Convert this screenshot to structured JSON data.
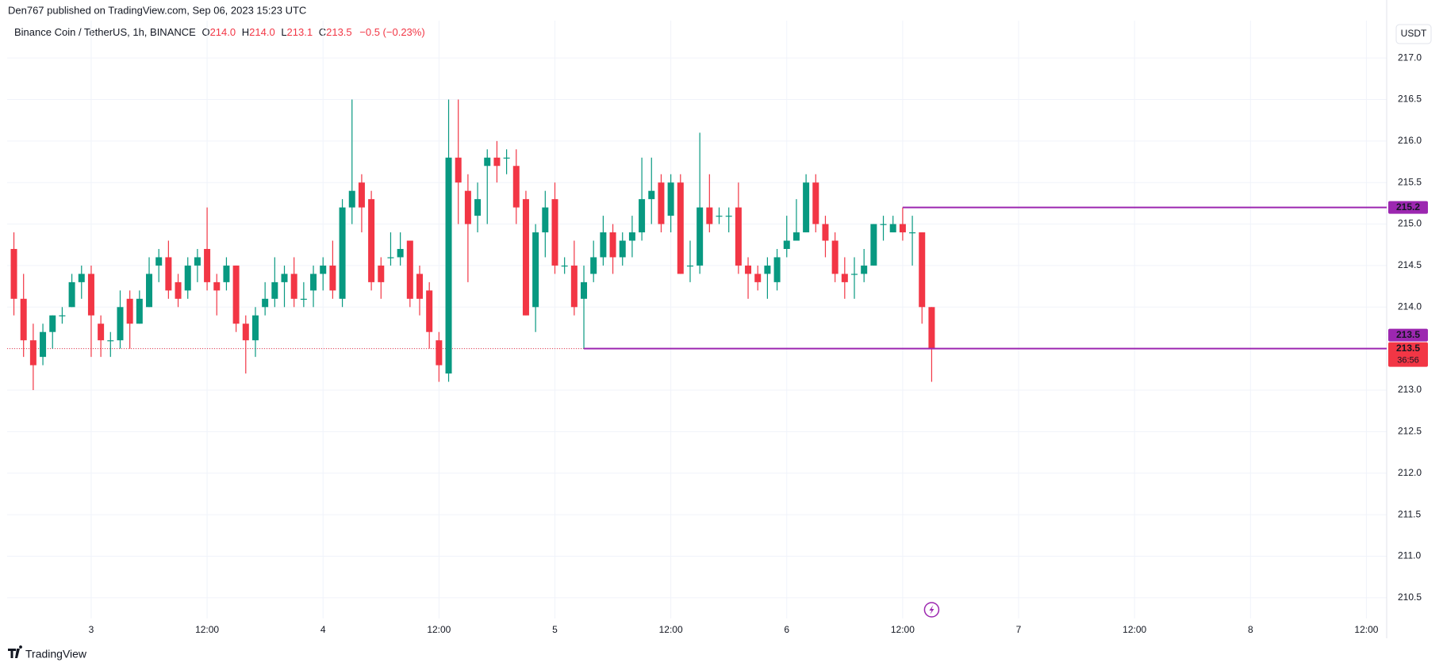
{
  "chart_data": {
    "type": "candlestick",
    "header": "Den767 published on TradingView.com, Sep 06, 2023 15:23 UTC",
    "legend": {
      "symbol": "Binance Coin / TetherUS, 1h, BINANCE",
      "o_label": "O",
      "o": "214.0",
      "h_label": "H",
      "h": "214.0",
      "l_label": "L",
      "l": "213.1",
      "c_label": "C",
      "c": "213.5",
      "change": "−0.5 (−0.23%)"
    },
    "currency": "USDT",
    "footer": "TradingView",
    "up_color": "#089981",
    "down_color": "#f23645",
    "line_color": "#9c27b0",
    "open": [
      214.7,
      214.1,
      213.6,
      213.4,
      213.7,
      213.9,
      214.0,
      214.3,
      214.4,
      213.8,
      213.6,
      213.6,
      214.1,
      213.8,
      214.0,
      214.5,
      214.6,
      214.3,
      214.2,
      214.5,
      214.7,
      214.3,
      214.3,
      214.5,
      213.8,
      213.6,
      214.0,
      214.1,
      214.3,
      214.4,
      214.1,
      214.2,
      214.4,
      214.5,
      214.1,
      215.2,
      215.5,
      215.3,
      214.5,
      214.6,
      214.6,
      214.8,
      214.4,
      214.2,
      213.6,
      213.2,
      215.8,
      215.4,
      215.1,
      215.7,
      215.8,
      215.8,
      215.7,
      215.3,
      214.0,
      214.9,
      215.3,
      214.5,
      214.5,
      214.1,
      214.4,
      214.6,
      214.9,
      214.6,
      214.8,
      214.9,
      215.3,
      215.5,
      215.1,
      215.5,
      214.5,
      214.5,
      215.2,
      215.1,
      215.1,
      215.2,
      214.5,
      214.4,
      214.4,
      214.3,
      214.7,
      214.8,
      214.9,
      215.5,
      215.0,
      214.8,
      214.4,
      214.4,
      214.4,
      214.5,
      215.0,
      214.9,
      215.0,
      214.9,
      214.9,
      214.0
    ],
    "high": [
      214.9,
      214.4,
      213.8,
      213.8,
      213.9,
      214.0,
      214.4,
      214.5,
      214.5,
      213.9,
      213.7,
      214.2,
      214.2,
      214.2,
      214.6,
      214.7,
      214.8,
      214.4,
      214.6,
      214.7,
      215.2,
      214.4,
      214.6,
      214.5,
      213.9,
      214.0,
      214.3,
      214.6,
      214.5,
      214.6,
      214.3,
      214.5,
      214.6,
      214.8,
      215.3,
      216.5,
      215.6,
      215.4,
      214.6,
      214.9,
      214.9,
      214.8,
      214.5,
      214.3,
      213.7,
      216.5,
      216.5,
      215.6,
      215.5,
      215.9,
      216.0,
      215.9,
      215.9,
      215.4,
      215.0,
      215.4,
      215.5,
      214.6,
      214.8,
      214.5,
      214.8,
      215.1,
      215.0,
      214.9,
      215.1,
      215.8,
      215.8,
      215.6,
      215.6,
      215.6,
      214.8,
      216.1,
      215.6,
      215.2,
      215.2,
      215.5,
      214.6,
      214.5,
      214.6,
      214.7,
      215.1,
      215.3,
      215.6,
      215.6,
      215.1,
      214.9,
      214.6,
      214.6,
      214.7,
      215.0,
      215.1,
      215.1,
      215.2,
      215.1,
      214.9,
      214.0
    ],
    "low": [
      213.9,
      213.4,
      213.0,
      213.3,
      213.5,
      213.8,
      214.0,
      214.1,
      213.4,
      213.4,
      213.4,
      213.5,
      213.5,
      213.8,
      214.0,
      214.3,
      214.1,
      214.0,
      214.1,
      214.3,
      214.2,
      213.9,
      214.2,
      213.7,
      213.2,
      213.4,
      213.9,
      214.0,
      214.0,
      214.0,
      214.0,
      214.0,
      214.2,
      214.1,
      214.0,
      215.0,
      214.9,
      214.2,
      214.1,
      214.5,
      214.5,
      214.0,
      213.9,
      213.5,
      213.1,
      213.1,
      215.0,
      214.3,
      214.9,
      215.0,
      215.5,
      215.6,
      215.0,
      213.9,
      213.7,
      214.6,
      214.4,
      214.4,
      213.9,
      213.5,
      214.3,
      214.5,
      214.4,
      214.5,
      214.6,
      214.8,
      215.0,
      214.9,
      214.9,
      214.4,
      214.3,
      214.4,
      214.9,
      215.0,
      214.9,
      214.4,
      214.1,
      214.2,
      214.1,
      214.2,
      214.6,
      214.8,
      214.9,
      214.9,
      214.6,
      214.3,
      214.1,
      214.1,
      214.3,
      214.5,
      214.8,
      214.9,
      214.8,
      214.5,
      213.8,
      213.1
    ],
    "close": [
      214.1,
      213.6,
      213.3,
      213.7,
      213.9,
      213.9,
      214.3,
      214.4,
      213.9,
      213.6,
      213.6,
      214.0,
      213.8,
      214.1,
      214.4,
      214.6,
      214.2,
      214.1,
      214.5,
      214.6,
      214.3,
      214.2,
      214.5,
      213.8,
      213.6,
      213.9,
      214.1,
      214.3,
      214.4,
      214.1,
      214.1,
      214.4,
      214.5,
      214.2,
      215.2,
      215.4,
      215.2,
      214.3,
      214.3,
      214.6,
      214.7,
      214.1,
      214.1,
      213.7,
      213.3,
      215.8,
      215.5,
      215.0,
      215.3,
      215.8,
      215.7,
      215.8,
      215.2,
      213.9,
      214.9,
      215.2,
      214.5,
      214.5,
      214.0,
      214.3,
      214.6,
      214.9,
      214.6,
      214.8,
      214.9,
      215.3,
      215.4,
      215.0,
      215.5,
      214.4,
      214.5,
      215.2,
      215.0,
      215.1,
      215.1,
      214.5,
      214.4,
      214.3,
      214.5,
      214.6,
      214.8,
      214.9,
      215.5,
      215.0,
      214.8,
      214.4,
      214.3,
      214.4,
      214.5,
      215.0,
      215.0,
      215.0,
      214.9,
      214.9,
      214.0,
      213.5
    ],
    "lines": [
      {
        "value": 215.2,
        "start": 92
      },
      {
        "value": 213.5,
        "start": 59
      }
    ],
    "last_price": 213.5,
    "countdown": "36:56",
    "xlim": [
      -0.7,
      142.1
    ],
    "xticks": [
      {
        "value": 8,
        "label": "3"
      },
      {
        "value": 20,
        "label": "12:00"
      },
      {
        "value": 32,
        "label": "4"
      },
      {
        "value": 44,
        "label": "12:00"
      },
      {
        "value": 56,
        "label": "5"
      },
      {
        "value": 68,
        "label": "12:00"
      },
      {
        "value": 80,
        "label": "6"
      },
      {
        "value": 92,
        "label": "12:00"
      },
      {
        "value": 104,
        "label": "7"
      },
      {
        "value": 116,
        "label": "12:00"
      },
      {
        "value": 128,
        "label": "8"
      },
      {
        "value": 140,
        "label": "12:00"
      }
    ],
    "ylim": [
      210.25,
      217.45
    ],
    "yticks": [
      {
        "value": 210.5,
        "label": "210.5"
      },
      {
        "value": 211,
        "label": "211.0"
      },
      211.5,
      {
        "value": 212,
        "label": "212.0"
      },
      212.5,
      {
        "value": 213,
        "label": "213.0"
      },
      213.5,
      {
        "value": 214,
        "label": "214.0"
      },
      214.5,
      {
        "value": 215,
        "label": "215.0"
      },
      215.5,
      {
        "value": 216,
        "label": "216.0"
      },
      216.5,
      {
        "value": 217,
        "label": "217.0"
      }
    ],
    "grid": true
  }
}
